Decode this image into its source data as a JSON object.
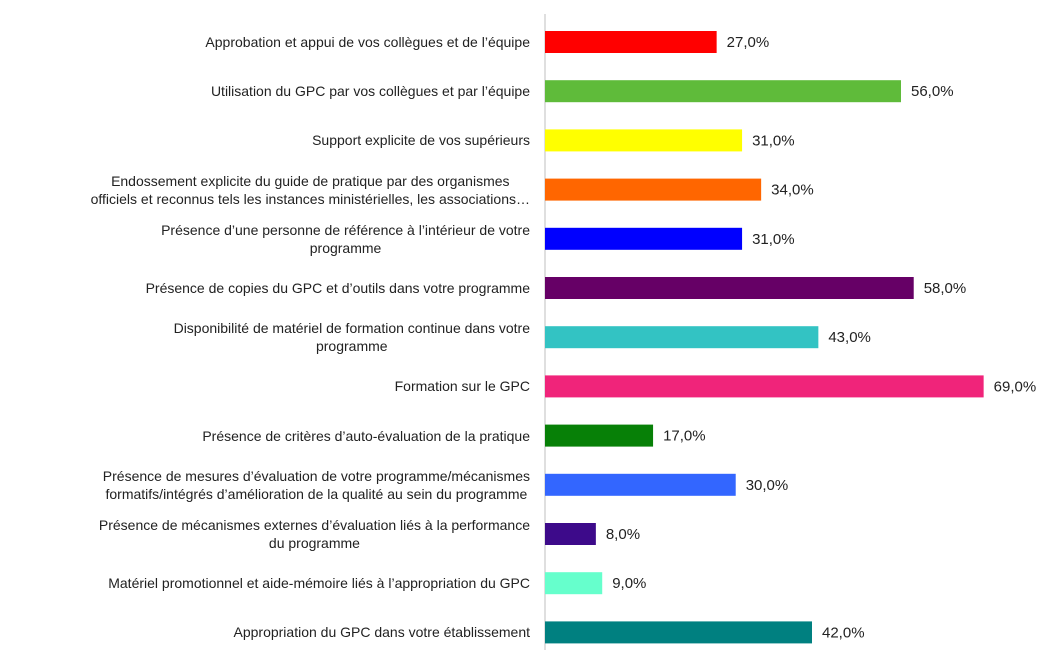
{
  "chart_data": {
    "type": "bar",
    "orientation": "horizontal",
    "categories": [
      "Approbation et appui de vos collègues et de l’équipe",
      "Utilisation du GPC par vos collègues et par l’équipe",
      "Support explicite de vos supérieurs",
      "Endossement explicite du guide de pratique par des organismes\nofficiels et reconnus tels les instances ministérielles, les associations…",
      "Présence d’une personne de référence à l’intérieur de votre\nprogramme",
      "Présence de copies du GPC et d’outils dans votre programme",
      "Disponibilité de matériel de formation continue dans votre\nprogramme",
      "Formation sur le GPC",
      "Présence de critères d’auto-évaluation de la pratique",
      "Présence de mesures d’évaluation de votre programme/mécanismes\nformatifs/intégrés d’amélioration de la qualité au sein du programme",
      "Présence de mécanismes externes d’évaluation liés à la performance\ndu programme",
      "Matériel promotionnel et aide-mémoire liés à l’appropriation du GPC",
      "Appropriation du GPC dans votre établissement"
    ],
    "values": [
      27,
      56,
      31,
      34,
      31,
      58,
      43,
      69,
      17,
      30,
      8,
      9,
      42
    ],
    "value_labels": [
      "27,0%",
      "56,0%",
      "31,0%",
      "34,0%",
      "31,0%",
      "58,0%",
      "43,0%",
      "69,0%",
      "17,0%",
      "30,0%",
      "8,0%",
      "9,0%",
      "42,0%"
    ],
    "colors": [
      "#ff0000",
      "#5fbb3a",
      "#ffff00",
      "#ff6600",
      "#0000ff",
      "#660066",
      "#33c3c3",
      "#f0247a",
      "#078007",
      "#3366ff",
      "#3d0a8a",
      "#66ffcc",
      "#008080"
    ],
    "xlim": [
      0,
      70
    ]
  }
}
